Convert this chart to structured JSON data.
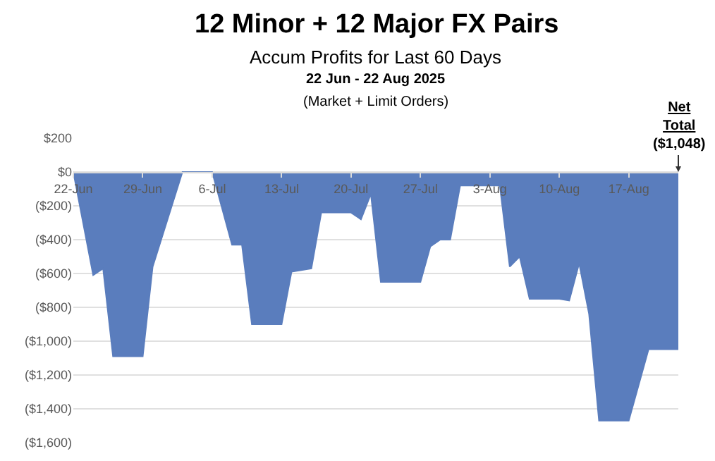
{
  "chart_data": {
    "type": "area",
    "title": "12 Minor + 12 Major FX Pairs",
    "subtitle": "Accum Profits for Last 60 Days",
    "annotations": [
      "22 Jun - 22 Aug 2025",
      "(Market + Limit Orders)",
      "Net Total ($1,048)"
    ],
    "x": [
      "2025-06-22",
      "2025-06-24",
      "2025-06-25",
      "2025-06-26",
      "2025-06-29",
      "2025-06-30",
      "2025-07-03",
      "2025-07-06",
      "2025-07-08",
      "2025-07-09",
      "2025-07-10",
      "2025-07-13",
      "2025-07-14",
      "2025-07-16",
      "2025-07-17",
      "2025-07-20",
      "2025-07-21",
      "2025-07-22",
      "2025-07-23",
      "2025-07-27",
      "2025-07-28",
      "2025-07-29",
      "2025-07-30",
      "2025-07-31",
      "2025-08-04",
      "2025-08-05",
      "2025-08-06",
      "2025-08-07",
      "2025-08-10",
      "2025-08-11",
      "2025-08-12",
      "2025-08-13",
      "2025-08-14",
      "2025-08-17",
      "2025-08-19",
      "2025-08-22"
    ],
    "series": [
      {
        "color": "#5a7dbd",
        "values": [
          0,
          -610,
          -570,
          -1090,
          -1090,
          -560,
          0,
          0,
          -430,
          -430,
          -900,
          -900,
          -590,
          -570,
          -240,
          -240,
          -280,
          -130,
          -650,
          -650,
          -440,
          -400,
          -400,
          -80,
          -80,
          -560,
          -500,
          -750,
          -750,
          -760,
          -540,
          -840,
          -1470,
          -1470,
          -1048,
          -1048
        ]
      }
    ],
    "xlim": [
      "2025-06-22",
      "2025-08-22"
    ],
    "xticks": [
      {
        "value": "2025-06-22",
        "label": "22-Jun"
      },
      {
        "value": "2025-06-29",
        "label": "29-Jun"
      },
      {
        "value": "2025-07-06",
        "label": "6-Jul"
      },
      {
        "value": "2025-07-13",
        "label": "13-Jul"
      },
      {
        "value": "2025-07-20",
        "label": "20-Jul"
      },
      {
        "value": "2025-07-27",
        "label": "27-Jul"
      },
      {
        "value": "2025-08-03",
        "label": "3-Aug"
      },
      {
        "value": "2025-08-10",
        "label": "10-Aug"
      },
      {
        "value": "2025-08-17",
        "label": "17-Aug"
      }
    ],
    "ylim": [
      -1600,
      200
    ],
    "yticks": [
      {
        "value": 200,
        "label": "$200"
      },
      {
        "value": 0,
        "label": "$0"
      },
      {
        "value": -200,
        "label": "($200)"
      },
      {
        "value": -400,
        "label": "($400)"
      },
      {
        "value": -600,
        "label": "($600)"
      },
      {
        "value": -800,
        "label": "($800)"
      },
      {
        "value": -1000,
        "label": "($1,000)"
      },
      {
        "value": -1200,
        "label": "($1,200)"
      },
      {
        "value": -1400,
        "label": "($1,400)"
      },
      {
        "value": -1600,
        "label": "($1,600)"
      }
    ],
    "grid": "y"
  }
}
